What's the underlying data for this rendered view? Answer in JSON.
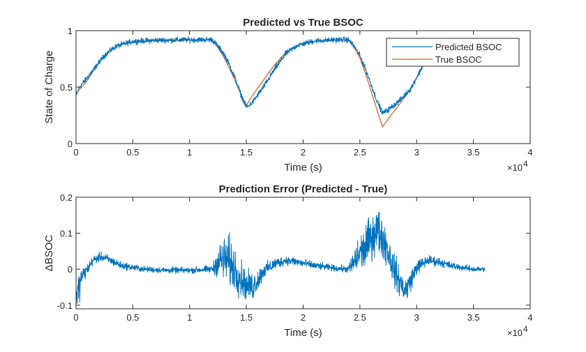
{
  "chart_data": [
    {
      "type": "line",
      "title": "Predicted vs True BSOC",
      "xlabel": "Time (s)",
      "ylabel": "State of Charge",
      "x_multiplier_label": "×10",
      "x_multiplier_exp": "4",
      "xlim": [
        0,
        40000
      ],
      "ylim": [
        0,
        1
      ],
      "xticks": [
        "0",
        "0.5",
        "1",
        "1.5",
        "2",
        "2.5",
        "3",
        "3.5",
        "4"
      ],
      "yticks": [
        "0",
        "0.5",
        "1"
      ],
      "grid": false,
      "legend_position": "top-right",
      "series": [
        {
          "name": "Predicted BSOC",
          "color": "#0072BD",
          "noise": 0.012,
          "x": [
            0,
            300,
            800,
            1500,
            2500,
            3500,
            5000,
            7000,
            9000,
            11000,
            12000,
            12500,
            13000,
            13500,
            14000,
            14500,
            15000,
            15500,
            16500,
            17500,
            18500,
            19500,
            21000,
            23000,
            24000,
            24500,
            25000,
            25500,
            26000,
            26500,
            27000,
            27500,
            28500,
            29500,
            30500
          ],
          "y": [
            0.42,
            0.5,
            0.56,
            0.65,
            0.78,
            0.86,
            0.905,
            0.915,
            0.918,
            0.92,
            0.92,
            0.86,
            0.8,
            0.7,
            0.58,
            0.44,
            0.32,
            0.36,
            0.5,
            0.66,
            0.8,
            0.87,
            0.91,
            0.92,
            0.92,
            0.86,
            0.78,
            0.66,
            0.52,
            0.38,
            0.27,
            0.3,
            0.38,
            0.49,
            0.68
          ]
        },
        {
          "name": "True BSOC",
          "color": "#D95319",
          "noise": 0,
          "x": [
            0,
            500,
            1000,
            2000,
            3000,
            4000,
            5000,
            7000,
            9000,
            11000,
            12000,
            12500,
            13000,
            13500,
            14000,
            14500,
            15000,
            15500,
            16500,
            17500,
            18500,
            19500,
            21000,
            23000,
            24000,
            24500,
            25000,
            25500,
            26000,
            26500,
            27000,
            27500,
            28500,
            29500,
            30500
          ],
          "y": [
            0.45,
            0.5,
            0.56,
            0.72,
            0.83,
            0.88,
            0.9,
            0.91,
            0.915,
            0.918,
            0.92,
            0.85,
            0.77,
            0.67,
            0.56,
            0.44,
            0.34,
            0.42,
            0.56,
            0.7,
            0.81,
            0.87,
            0.905,
            0.915,
            0.92,
            0.85,
            0.76,
            0.62,
            0.46,
            0.3,
            0.15,
            0.22,
            0.35,
            0.49,
            0.68
          ]
        }
      ]
    },
    {
      "type": "line",
      "title": "Prediction Error (Predicted - True)",
      "xlabel": "Time (s)",
      "ylabel": "ΔBSOC",
      "x_multiplier_label": "×10",
      "x_multiplier_exp": "4",
      "xlim": [
        0,
        40000
      ],
      "ylim": [
        -0.11,
        0.2
      ],
      "xticks": [
        "0",
        "0.5",
        "1",
        "1.5",
        "2",
        "2.5",
        "3",
        "3.5",
        "4"
      ],
      "yticks": [
        "-0.1",
        "0",
        "0.1",
        "0.2"
      ],
      "grid": false,
      "series": [
        {
          "color": "#0072BD",
          "x": [
            0,
            200,
            500,
            1000,
            1500,
            2200,
            3000,
            4000,
            6000,
            8000,
            10000,
            12000,
            12500,
            13000,
            13500,
            14000,
            14500,
            15000,
            15500,
            16000,
            16500,
            17500,
            18500,
            19500,
            21000,
            23000,
            24000,
            24500,
            25000,
            25500,
            26000,
            26500,
            27000,
            27500,
            28000,
            28500,
            29000,
            29500,
            30000,
            31000,
            32000,
            33000,
            34000,
            35000,
            36000
          ],
          "y": [
            -0.08,
            -0.06,
            -0.02,
            0.0,
            0.025,
            0.035,
            0.025,
            0.01,
            0.0,
            -0.003,
            -0.003,
            0.0,
            0.02,
            0.03,
            0.02,
            0.0,
            -0.025,
            -0.045,
            -0.05,
            -0.03,
            -0.005,
            0.015,
            0.025,
            0.02,
            0.01,
            0.002,
            0.0,
            0.02,
            0.045,
            0.06,
            0.09,
            0.11,
            0.09,
            0.05,
            0.0,
            -0.035,
            -0.06,
            -0.03,
            0.005,
            0.025,
            0.02,
            0.01,
            0.005,
            0.0,
            0.0
          ],
          "noise": [
            0.02,
            0.025,
            0.012,
            0.008,
            0.006,
            0.006,
            0.006,
            0.005,
            0.004,
            0.004,
            0.004,
            0.005,
            0.02,
            0.03,
            0.035,
            0.03,
            0.025,
            0.02,
            0.02,
            0.015,
            0.01,
            0.008,
            0.006,
            0.006,
            0.005,
            0.004,
            0.005,
            0.02,
            0.025,
            0.03,
            0.03,
            0.03,
            0.028,
            0.025,
            0.022,
            0.02,
            0.018,
            0.014,
            0.01,
            0.007,
            0.006,
            0.005,
            0.004,
            0.004,
            0.003
          ]
        }
      ]
    }
  ]
}
